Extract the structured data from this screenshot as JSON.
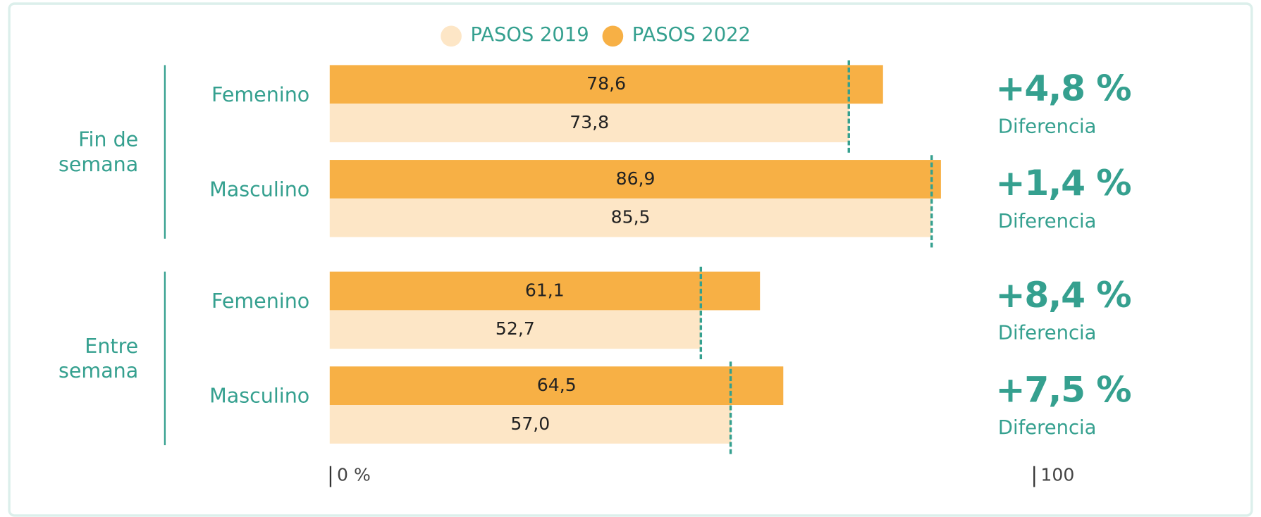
{
  "chart_data": {
    "type": "bar",
    "orientation": "horizontal",
    "legend": "top",
    "groups": [
      "Fin de semana",
      "Entre semana"
    ],
    "categories": [
      "Femenino",
      "Masculino",
      "Femenino",
      "Masculino"
    ],
    "series": [
      {
        "name": "PASOS 2019",
        "color": "#fde6c6",
        "values": [
          73.8,
          85.5,
          52.7,
          57.0
        ],
        "value_labels": [
          "73,8",
          "85,5",
          "52,7",
          "57,0"
        ]
      },
      {
        "name": "PASOS 2022",
        "color": "#f7b045",
        "values": [
          78.6,
          86.9,
          61.1,
          64.5
        ],
        "value_labels": [
          "78,6",
          "86,9",
          "61,1",
          "64,5"
        ]
      }
    ],
    "differences": {
      "values": [
        4.8,
        1.4,
        8.4,
        7.5
      ],
      "value_labels": [
        "+4,8 %",
        "+1,4 %",
        "+8,4 %",
        "+7,5 %"
      ],
      "label": "Diferencia"
    },
    "xlim": [
      0,
      100
    ],
    "xticks": [
      {
        "value": 0,
        "label": "0 %"
      },
      100
    ]
  }
}
